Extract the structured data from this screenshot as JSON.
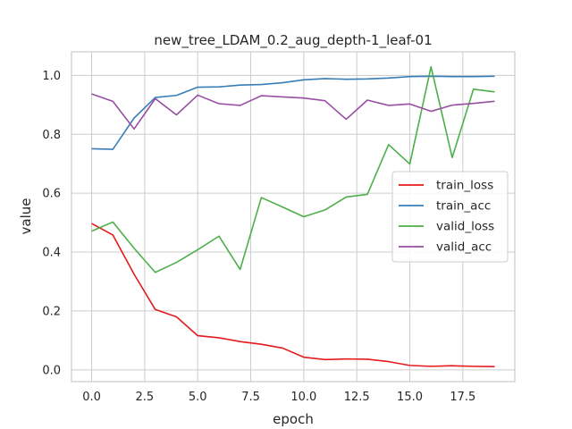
{
  "chart_data": {
    "type": "line",
    "title": "new_tree_LDAM_0.2_aug_depth-1_leaf-01",
    "xlabel": "epoch",
    "ylabel": "value",
    "xlim": [
      -0.95,
      19.95
    ],
    "ylim": [
      -0.04,
      1.08
    ],
    "xticks": [
      0.0,
      2.5,
      5.0,
      7.5,
      10.0,
      12.5,
      15.0,
      17.5
    ],
    "xtick_labels": [
      "0.0",
      "2.5",
      "5.0",
      "7.5",
      "10.0",
      "12.5",
      "15.0",
      "17.5"
    ],
    "yticks": [
      0.0,
      0.2,
      0.4,
      0.6,
      0.8,
      1.0
    ],
    "ytick_labels": [
      "0.0",
      "0.2",
      "0.4",
      "0.6",
      "0.8",
      "1.0"
    ],
    "grid": true,
    "legend_position": "center-right",
    "x": [
      0,
      1,
      2,
      3,
      4,
      5,
      6,
      7,
      8,
      9,
      10,
      11,
      12,
      13,
      14,
      15,
      16,
      17,
      18,
      19
    ],
    "series": [
      {
        "name": "train_loss",
        "color": "#e41a1c",
        "values": [
          0.497,
          0.458,
          0.325,
          0.205,
          0.18,
          0.116,
          0.109,
          0.096,
          0.087,
          0.074,
          0.043,
          0.035,
          0.037,
          0.036,
          0.028,
          0.015,
          0.012,
          0.014,
          0.012,
          0.011
        ]
      },
      {
        "name": "train_acc",
        "color": "#377eb8",
        "values": [
          0.751,
          0.749,
          0.855,
          0.925,
          0.932,
          0.96,
          0.961,
          0.967,
          0.969,
          0.975,
          0.985,
          0.989,
          0.987,
          0.988,
          0.991,
          0.996,
          0.997,
          0.996,
          0.996,
          0.997
        ]
      },
      {
        "name": "valid_loss",
        "color": "#4daf4a",
        "values": [
          0.471,
          0.502,
          0.413,
          0.331,
          0.365,
          0.408,
          0.454,
          0.341,
          0.585,
          0.553,
          0.52,
          0.543,
          0.587,
          0.596,
          0.765,
          0.699,
          1.029,
          0.721,
          0.953,
          0.944
        ]
      },
      {
        "name": "valid_acc",
        "color": "#984ea3",
        "values": [
          0.937,
          0.912,
          0.818,
          0.921,
          0.866,
          0.933,
          0.904,
          0.898,
          0.931,
          0.927,
          0.923,
          0.914,
          0.851,
          0.916,
          0.898,
          0.903,
          0.878,
          0.899,
          0.905,
          0.912
        ]
      }
    ]
  }
}
